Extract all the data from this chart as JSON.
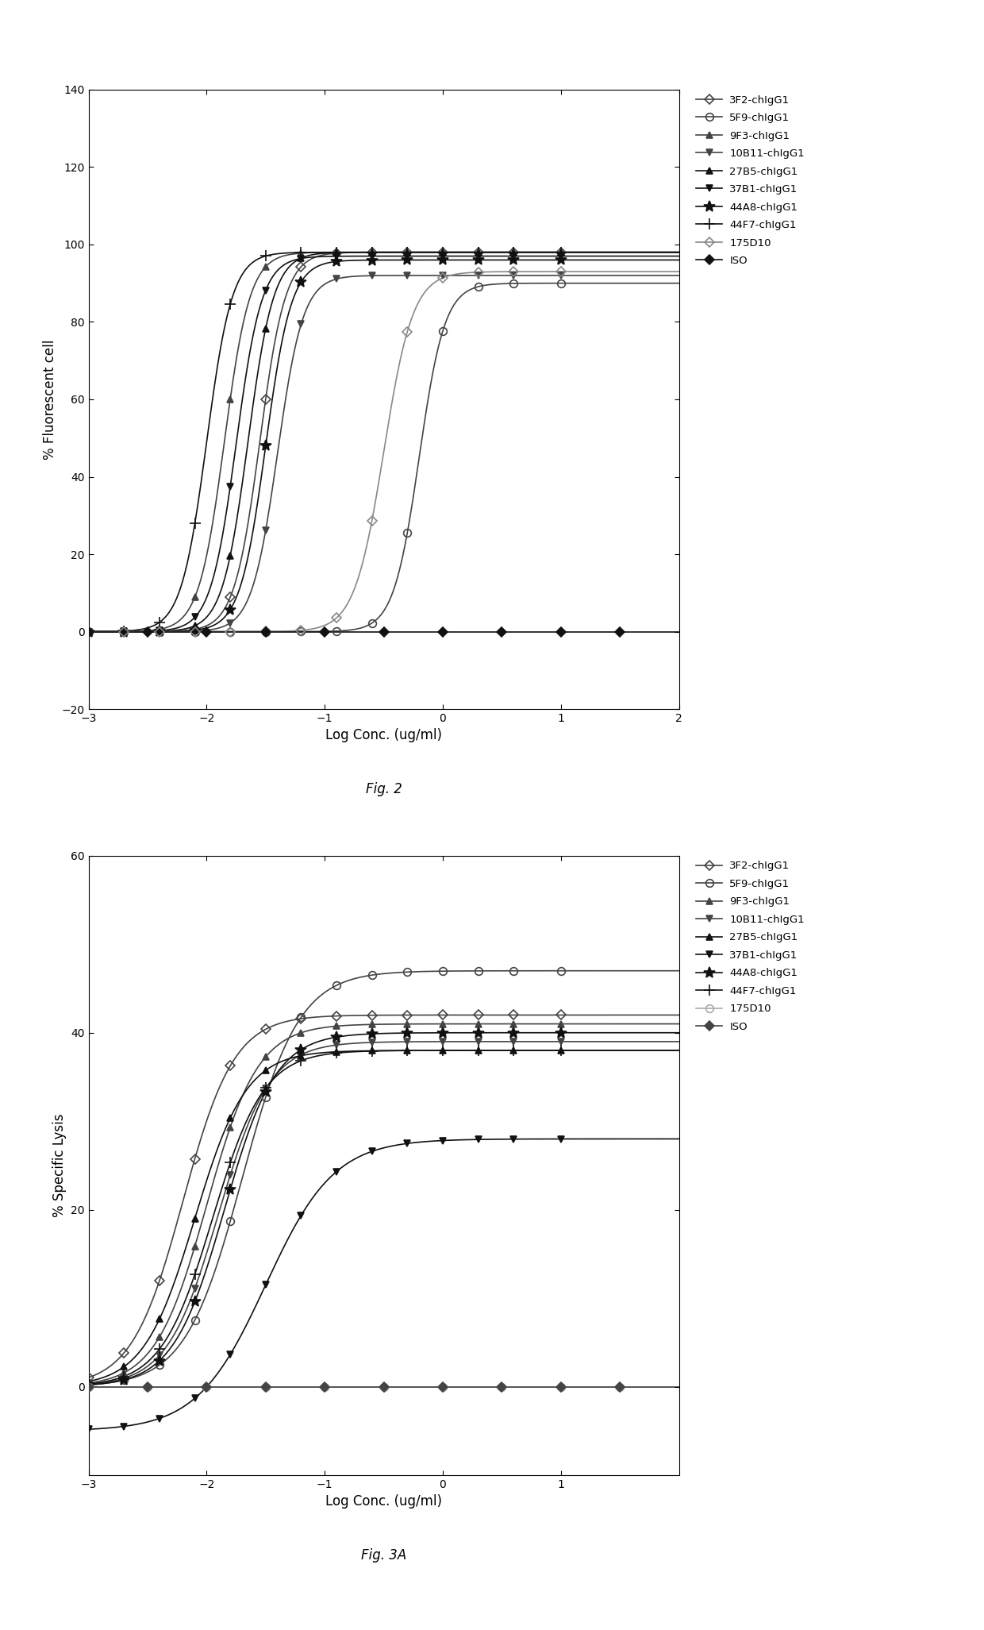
{
  "fig2": {
    "title": "Fig. 2",
    "ylabel": "% Fluorescent cell",
    "xlabel": "Log Conc. (ug/ml)",
    "xlim": [
      -3,
      2
    ],
    "ylim": [
      -20,
      140
    ],
    "yticks": [
      -20,
      0,
      20,
      40,
      60,
      80,
      100,
      120,
      140
    ],
    "xticks": [
      -3,
      -2,
      -1,
      0,
      1,
      2
    ],
    "series": [
      {
        "label": "3F2-chIgG1",
        "ec50": -1.55,
        "hill": 4.0,
        "top": 98,
        "bottom": 0,
        "marker": "D",
        "color": "#444444",
        "open": true
      },
      {
        "label": "5F9-chIgG1",
        "ec50": -0.2,
        "hill": 4.0,
        "top": 90,
        "bottom": 0,
        "marker": "o",
        "color": "#444444",
        "open": true
      },
      {
        "label": "9F3-chIgG1",
        "ec50": -1.85,
        "hill": 4.0,
        "top": 98,
        "bottom": 0,
        "marker": "^",
        "color": "#444444",
        "open": false
      },
      {
        "label": "10B11-chIgG1",
        "ec50": -1.4,
        "hill": 4.0,
        "top": 92,
        "bottom": 0,
        "marker": "v",
        "color": "#444444",
        "open": false
      },
      {
        "label": "27B5-chIgG1",
        "ec50": -1.65,
        "hill": 4.0,
        "top": 98,
        "bottom": 0,
        "marker": "^",
        "color": "#111111",
        "open": false
      },
      {
        "label": "37B1-chIgG1",
        "ec50": -1.75,
        "hill": 4.0,
        "top": 97,
        "bottom": 0,
        "marker": "v",
        "color": "#111111",
        "open": false
      },
      {
        "label": "44A8-chIgG1",
        "ec50": -1.5,
        "hill": 4.0,
        "top": 96,
        "bottom": 0,
        "marker": "*",
        "color": "#111111",
        "open": false
      },
      {
        "label": "44F7-chIgG1",
        "ec50": -2.0,
        "hill": 4.0,
        "top": 98,
        "bottom": 0,
        "marker": "+",
        "color": "#111111",
        "open": false
      },
      {
        "label": "175D10",
        "ec50": -0.5,
        "hill": 3.5,
        "top": 93,
        "bottom": 0,
        "marker": "D",
        "color": "#888888",
        "open": true
      },
      {
        "label": "ISO",
        "ec50": 8.0,
        "hill": 4.0,
        "top": 0,
        "bottom": 0,
        "marker": "D",
        "color": "#111111",
        "open": false,
        "iso": true
      }
    ]
  },
  "fig3a": {
    "title": "Fig. 3A",
    "ylabel": "% Specific Lysis",
    "xlabel": "Log Conc. (ug/ml)",
    "xlim": [
      -3,
      2
    ],
    "ylim": [
      -10,
      60
    ],
    "yticks": [
      0,
      20,
      40,
      60
    ],
    "xticks": [
      -3,
      -2,
      -1,
      0,
      1
    ],
    "series": [
      {
        "label": "3F2-chIgG1",
        "ec50": -2.2,
        "hill": 2.0,
        "top": 42,
        "bottom": 0,
        "marker": "D",
        "color": "#444444",
        "open": true
      },
      {
        "label": "5F9-chIgG1",
        "ec50": -1.7,
        "hill": 1.8,
        "top": 47,
        "bottom": 0,
        "marker": "o",
        "color": "#444444",
        "open": true
      },
      {
        "label": "9F3-chIgG1",
        "ec50": -2.0,
        "hill": 2.0,
        "top": 41,
        "bottom": 0,
        "marker": "^",
        "color": "#444444",
        "open": false
      },
      {
        "label": "10B11-chIgG1",
        "ec50": -1.9,
        "hill": 2.0,
        "top": 39,
        "bottom": 0,
        "marker": "v",
        "color": "#444444",
        "open": false
      },
      {
        "label": "27B5-chIgG1",
        "ec50": -2.1,
        "hill": 2.0,
        "top": 38,
        "bottom": 0,
        "marker": "^",
        "color": "#111111",
        "open": false
      },
      {
        "label": "37B1-chIgG1",
        "ec50": -1.5,
        "hill": 1.5,
        "top": 28,
        "bottom": -5,
        "marker": "v",
        "color": "#111111",
        "open": false
      },
      {
        "label": "44A8-chIgG1",
        "ec50": -1.85,
        "hill": 2.0,
        "top": 40,
        "bottom": 0,
        "marker": "*",
        "color": "#111111",
        "open": false
      },
      {
        "label": "44F7-chIgG1",
        "ec50": -1.95,
        "hill": 2.0,
        "top": 38,
        "bottom": 0,
        "marker": "+",
        "color": "#111111",
        "open": false
      },
      {
        "label": "175D10",
        "ec50": -1.2,
        "hill": 1.5,
        "top": 0,
        "bottom": 0,
        "marker": "o",
        "color": "#aaaaaa",
        "open": true,
        "iso": true
      },
      {
        "label": "ISO",
        "ec50": 8.0,
        "hill": 2.0,
        "top": 0,
        "bottom": 0,
        "marker": "D",
        "color": "#444444",
        "open": false,
        "iso": true
      }
    ]
  }
}
